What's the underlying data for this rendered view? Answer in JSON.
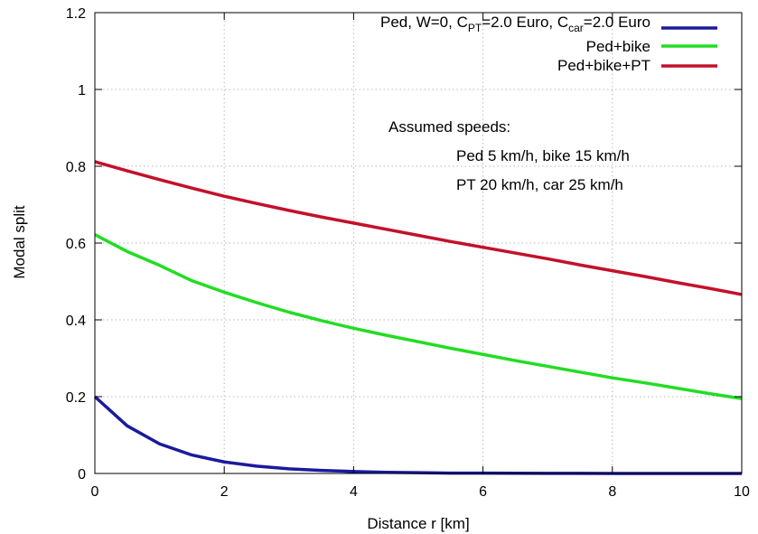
{
  "chart_data": {
    "type": "line",
    "title": "",
    "xlabel": "Distance r [km]",
    "ylabel": "Modal split",
    "xlim": [
      0,
      10
    ],
    "ylim": [
      0,
      1.2
    ],
    "x_ticks": [
      0,
      2,
      4,
      6,
      8,
      10
    ],
    "y_ticks": [
      0,
      0.2,
      0.4,
      0.6,
      0.8,
      1,
      1.2
    ],
    "grid": true,
    "legend_position": "top-right",
    "legend": {
      "ped": {
        "prefix": "Ped, W=0, C",
        "sub1": "PT",
        "mid": "=2.0 Euro, C",
        "sub2": "car",
        "suffix": "=2.0 Euro"
      },
      "ped_bike": "Ped+bike",
      "ped_bike_pt": "Ped+bike+PT"
    },
    "annotations": [
      "Assumed speeds:",
      "Ped 5 km/h, bike 15 km/h",
      "PT 20 km/h, car 25 km/h"
    ],
    "x": [
      0,
      0.5,
      1,
      1.5,
      2,
      2.5,
      3,
      3.5,
      4,
      4.5,
      5,
      5.5,
      6,
      6.5,
      7,
      7.5,
      8,
      8.5,
      9,
      9.5,
      10
    ],
    "series": [
      {
        "key": "ped",
        "color": "#1a1a9c",
        "values": [
          0.2,
          0.124,
          0.077,
          0.048,
          0.03,
          0.019,
          0.012,
          0.008,
          0.005,
          0.003,
          0.002,
          0.001,
          0.001,
          0.0005,
          0.0003,
          0.0002,
          0.0001,
          0,
          0,
          0,
          0
        ]
      },
      {
        "key": "ped_bike",
        "color": "#22dd22",
        "values": [
          0.622,
          0.578,
          0.542,
          0.502,
          0.472,
          0.445,
          0.42,
          0.398,
          0.378,
          0.36,
          0.343,
          0.326,
          0.31,
          0.294,
          0.279,
          0.264,
          0.249,
          0.236,
          0.222,
          0.208,
          0.195
        ]
      },
      {
        "key": "ped_bike_pt",
        "color": "#c4102a",
        "values": [
          0.812,
          0.788,
          0.765,
          0.743,
          0.722,
          0.703,
          0.685,
          0.668,
          0.652,
          0.636,
          0.62,
          0.604,
          0.589,
          0.574,
          0.559,
          0.543,
          0.528,
          0.513,
          0.497,
          0.482,
          0.466
        ]
      }
    ]
  }
}
